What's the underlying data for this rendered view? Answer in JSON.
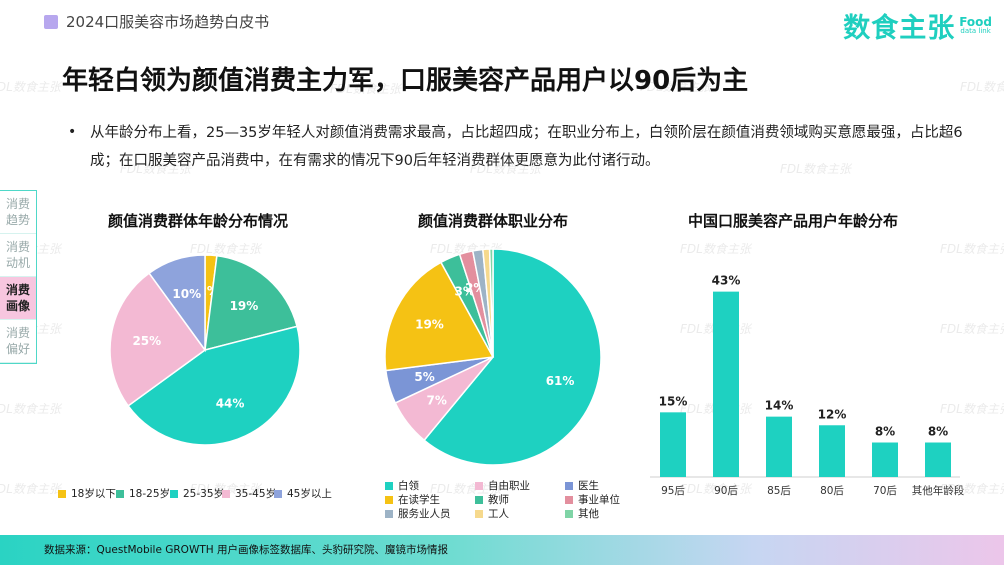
{
  "header": {
    "label": "2024口服美容市场趋势白皮书"
  },
  "logo": {
    "text": "数食主张",
    "badge_top": "Food",
    "badge_bottom": "data link"
  },
  "page_title": "年轻白领为颜值消费主力军，口服美容产品用户以90后为主",
  "bullet": "从年龄分布上看，25—35岁年轻人对颜值消费需求最高，占比超四成；在职业分布上，白领阶层在颜值消费领域购买意愿最强，占比超6成；在口服美容产品消费中，在有需求的情况下90后年轻消费群体更愿意为此付诸行动。",
  "sidenav": [
    {
      "label": "消费趋势",
      "active": false
    },
    {
      "label": "消费动机",
      "active": false
    },
    {
      "label": "消费画像",
      "active": true
    },
    {
      "label": "消费偏好",
      "active": false
    }
  ],
  "watermark": "FDL数食主张",
  "chart_data": [
    {
      "type": "pie",
      "title": "颜值消费群体年龄分布情况",
      "slices": [
        {
          "label": "18岁以下",
          "value": 2,
          "display": "2%",
          "color": "#f5c214"
        },
        {
          "label": "18-25岁",
          "value": 19,
          "display": "19%",
          "color": "#3dbf9a"
        },
        {
          "label": "25-35岁",
          "value": 44,
          "display": "44%",
          "color": "#1ed1c1"
        },
        {
          "label": "35-45岁",
          "value": 25,
          "display": "25%",
          "color": "#f3b9d3"
        },
        {
          "label": "45岁以上",
          "value": 10,
          "display": "10%",
          "color": "#8ea3dc"
        }
      ],
      "legend": "bottom"
    },
    {
      "type": "pie",
      "title": "颜值消费群体职业分布",
      "slices": [
        {
          "label": "白领",
          "value": 61,
          "display": "61%",
          "color": "#1ed1c1"
        },
        {
          "label": "自由职业",
          "value": 7,
          "display": "7%",
          "color": "#f3b9d3"
        },
        {
          "label": "医生",
          "value": 5,
          "display": "5%",
          "color": "#7b95d6"
        },
        {
          "label": "在读学生",
          "value": 19,
          "display": "19%",
          "color": "#f5c214"
        },
        {
          "label": "教师",
          "value": 3,
          "display": "3%",
          "color": "#3dbf9a"
        },
        {
          "label": "事业单位",
          "value": 2,
          "display": "2%",
          "color": "#e38f9e"
        },
        {
          "label": "服务业人员",
          "value": 1.5,
          "display": "",
          "color": "#9db3c6"
        },
        {
          "label": "工人",
          "value": 1,
          "display": "",
          "color": "#f6d98d"
        },
        {
          "label": "其他",
          "value": 0.5,
          "display": "",
          "color": "#7fd4a6"
        }
      ],
      "legend": "bottom"
    },
    {
      "type": "bar",
      "title": "中国口服美容产品用户年龄分布",
      "categories": [
        "95后",
        "90后",
        "85后",
        "80后",
        "70后",
        "其他年龄段"
      ],
      "values": [
        15,
        43,
        14,
        12,
        8,
        8
      ],
      "labels": [
        "15%",
        "43%",
        "14%",
        "12%",
        "8%",
        "8%"
      ],
      "color": "#1ed1c1",
      "ylim": [
        0,
        45
      ]
    }
  ],
  "footer": {
    "source": "数据来源：QuestMobile GROWTH 用户画像标签数据库、头豹研究院、魔镜市场情报"
  }
}
